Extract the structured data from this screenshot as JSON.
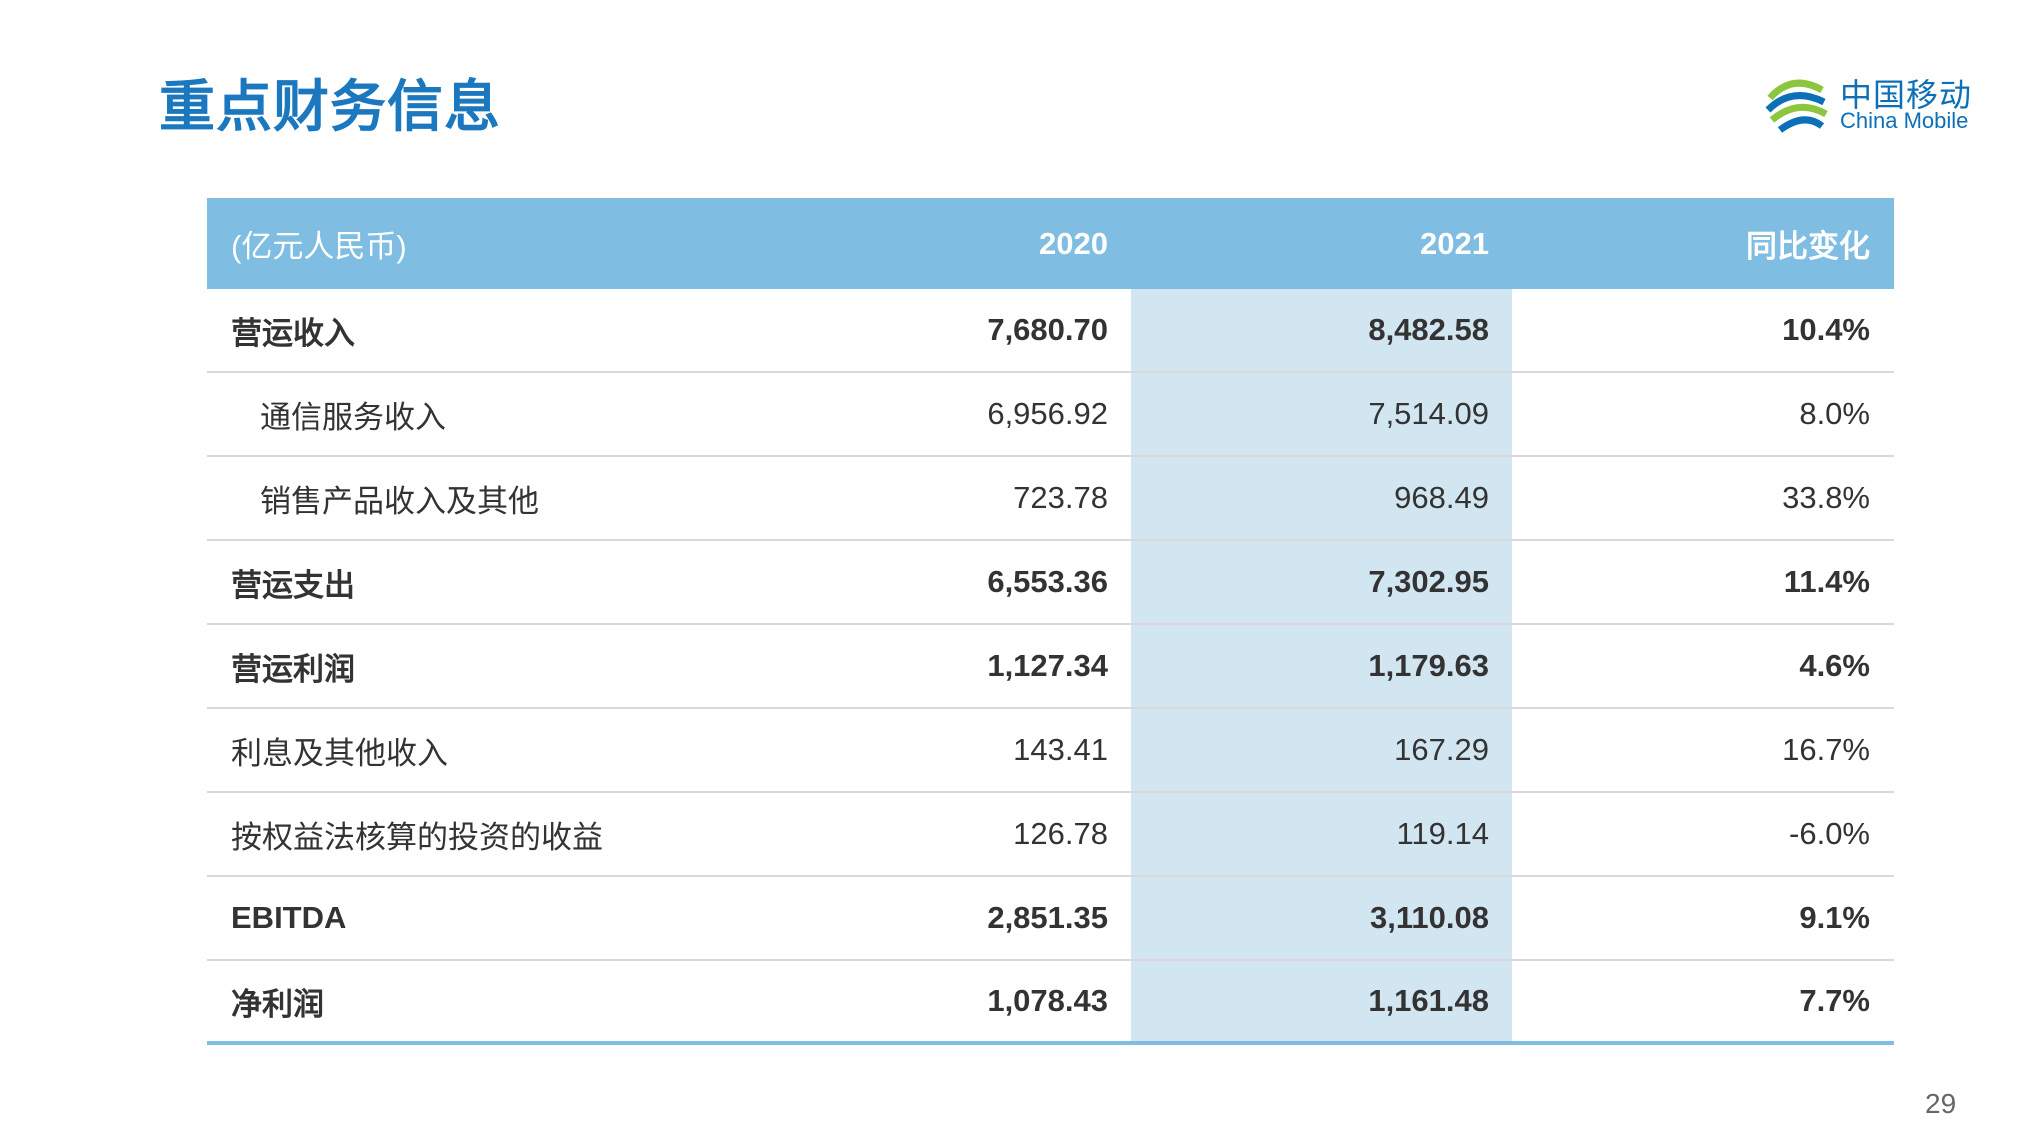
{
  "header": {
    "title": "重点财务信息",
    "logo": {
      "name_cn": "中国移动",
      "name_en": "China Mobile"
    }
  },
  "table": {
    "columns": [
      "(亿元人民币)",
      "2020",
      "2021",
      "同比变化"
    ],
    "rows": [
      [
        "营运收入",
        "7,680.70",
        "8,482.58",
        "10.4%"
      ],
      [
        "通信服务收入",
        "6,956.92",
        "7,514.09",
        "8.0%"
      ],
      [
        "销售产品收入及其他",
        "723.78",
        "968.49",
        "33.8%"
      ],
      [
        "营运支出",
        "6,553.36",
        "7,302.95",
        "11.4%"
      ],
      [
        "营运利润",
        "1,127.34",
        "1,179.63",
        "4.6%"
      ],
      [
        "利息及其他收入",
        "143.41",
        "167.29",
        "16.7%"
      ],
      [
        "按权益法核算的投资的收益",
        "126.78",
        "119.14",
        "-6.0%"
      ],
      [
        "EBITDA",
        "2,851.35",
        "3,110.08",
        "9.1%"
      ],
      [
        "净利润",
        "1,078.43",
        "1,161.48",
        "7.7%"
      ]
    ]
  },
  "footer": {
    "page_number": "29"
  }
}
